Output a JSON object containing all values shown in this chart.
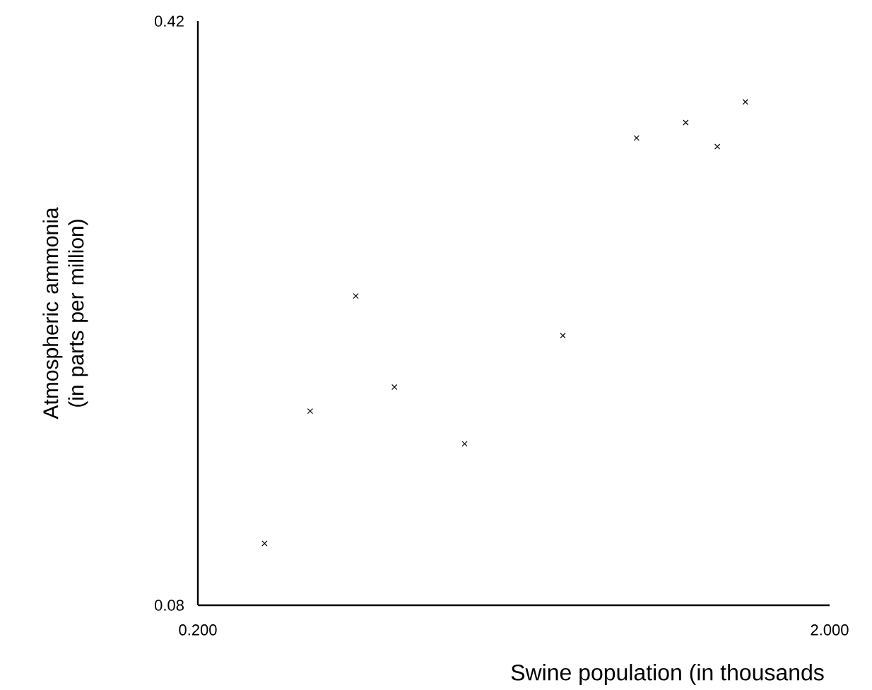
{
  "chart_data": {
    "type": "scatter",
    "xlabel": "Swine population (in thousands",
    "ylabel": "Atmospheric ammonia (in parts per million)",
    "x": [
      0.39,
      0.52,
      0.65,
      0.76,
      0.96,
      1.24,
      1.45,
      1.59,
      1.68,
      1.76
    ],
    "values": [
      0.116,
      0.193,
      0.26,
      0.207,
      0.174,
      0.237,
      0.352,
      0.361,
      0.347,
      0.373
    ],
    "color": "#000000",
    "marker": "cross",
    "xlim": [
      0.2,
      2.0
    ],
    "ylim": [
      0.08,
      0.42
    ],
    "xticks": [
      {
        "value": 0.2,
        "label": "0.200"
      },
      {
        "value": 2.0,
        "label": "2.000"
      }
    ],
    "yticks": [
      0.08,
      0.42
    ]
  }
}
